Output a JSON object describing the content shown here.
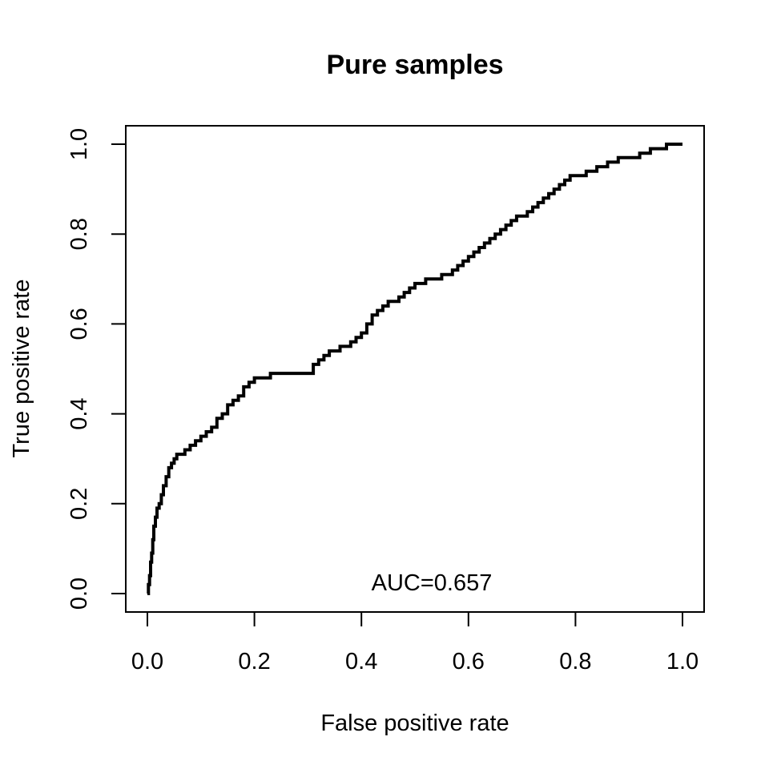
{
  "chart_data": {
    "type": "line",
    "title": "Pure samples",
    "xlabel": "False positive rate",
    "ylabel": "True positive rate",
    "xlim": [
      0,
      1
    ],
    "ylim": [
      0,
      1
    ],
    "x_ticks": [
      "0.0",
      "0.2",
      "0.4",
      "0.6",
      "0.8",
      "1.0"
    ],
    "y_ticks": [
      "0.0",
      "0.2",
      "0.4",
      "0.6",
      "0.8",
      "1.0"
    ],
    "grid": false,
    "legend": "none",
    "annotation": "AUC=0.657",
    "series": [
      {
        "color": "#000000",
        "x": [
          0.0,
          0.002,
          0.004,
          0.006,
          0.008,
          0.01,
          0.012,
          0.015,
          0.018,
          0.022,
          0.026,
          0.03,
          0.035,
          0.04,
          0.045,
          0.05,
          0.055,
          0.06,
          0.07,
          0.08,
          0.09,
          0.1,
          0.11,
          0.12,
          0.13,
          0.14,
          0.15,
          0.16,
          0.17,
          0.18,
          0.19,
          0.2,
          0.22,
          0.23,
          0.25,
          0.27,
          0.3,
          0.31,
          0.32,
          0.33,
          0.34,
          0.35,
          0.36,
          0.37,
          0.38,
          0.39,
          0.4,
          0.41,
          0.42,
          0.43,
          0.44,
          0.45,
          0.46,
          0.47,
          0.48,
          0.49,
          0.5,
          0.51,
          0.52,
          0.53,
          0.54,
          0.55,
          0.56,
          0.57,
          0.58,
          0.59,
          0.6,
          0.61,
          0.62,
          0.63,
          0.64,
          0.65,
          0.66,
          0.67,
          0.68,
          0.69,
          0.7,
          0.71,
          0.72,
          0.73,
          0.74,
          0.75,
          0.76,
          0.77,
          0.78,
          0.79,
          0.8,
          0.81,
          0.82,
          0.83,
          0.84,
          0.85,
          0.86,
          0.87,
          0.88,
          0.89,
          0.9,
          0.91,
          0.92,
          0.93,
          0.94,
          0.95,
          0.96,
          0.97,
          0.98,
          0.99,
          1.0
        ],
        "y": [
          0.0,
          0.02,
          0.04,
          0.07,
          0.09,
          0.12,
          0.15,
          0.17,
          0.19,
          0.2,
          0.22,
          0.24,
          0.26,
          0.28,
          0.29,
          0.3,
          0.31,
          0.31,
          0.32,
          0.33,
          0.34,
          0.35,
          0.36,
          0.37,
          0.39,
          0.4,
          0.42,
          0.43,
          0.44,
          0.46,
          0.47,
          0.48,
          0.48,
          0.49,
          0.49,
          0.49,
          0.49,
          0.51,
          0.52,
          0.53,
          0.54,
          0.54,
          0.55,
          0.55,
          0.56,
          0.57,
          0.58,
          0.6,
          0.62,
          0.63,
          0.64,
          0.65,
          0.65,
          0.66,
          0.67,
          0.68,
          0.69,
          0.69,
          0.7,
          0.7,
          0.7,
          0.71,
          0.71,
          0.72,
          0.73,
          0.74,
          0.75,
          0.76,
          0.77,
          0.78,
          0.79,
          0.8,
          0.81,
          0.82,
          0.83,
          0.84,
          0.84,
          0.85,
          0.86,
          0.87,
          0.88,
          0.89,
          0.9,
          0.91,
          0.92,
          0.93,
          0.93,
          0.93,
          0.94,
          0.94,
          0.95,
          0.95,
          0.96,
          0.96,
          0.97,
          0.97,
          0.97,
          0.97,
          0.98,
          0.98,
          0.99,
          0.99,
          0.99,
          1.0,
          1.0,
          1.0,
          1.0
        ]
      }
    ]
  }
}
